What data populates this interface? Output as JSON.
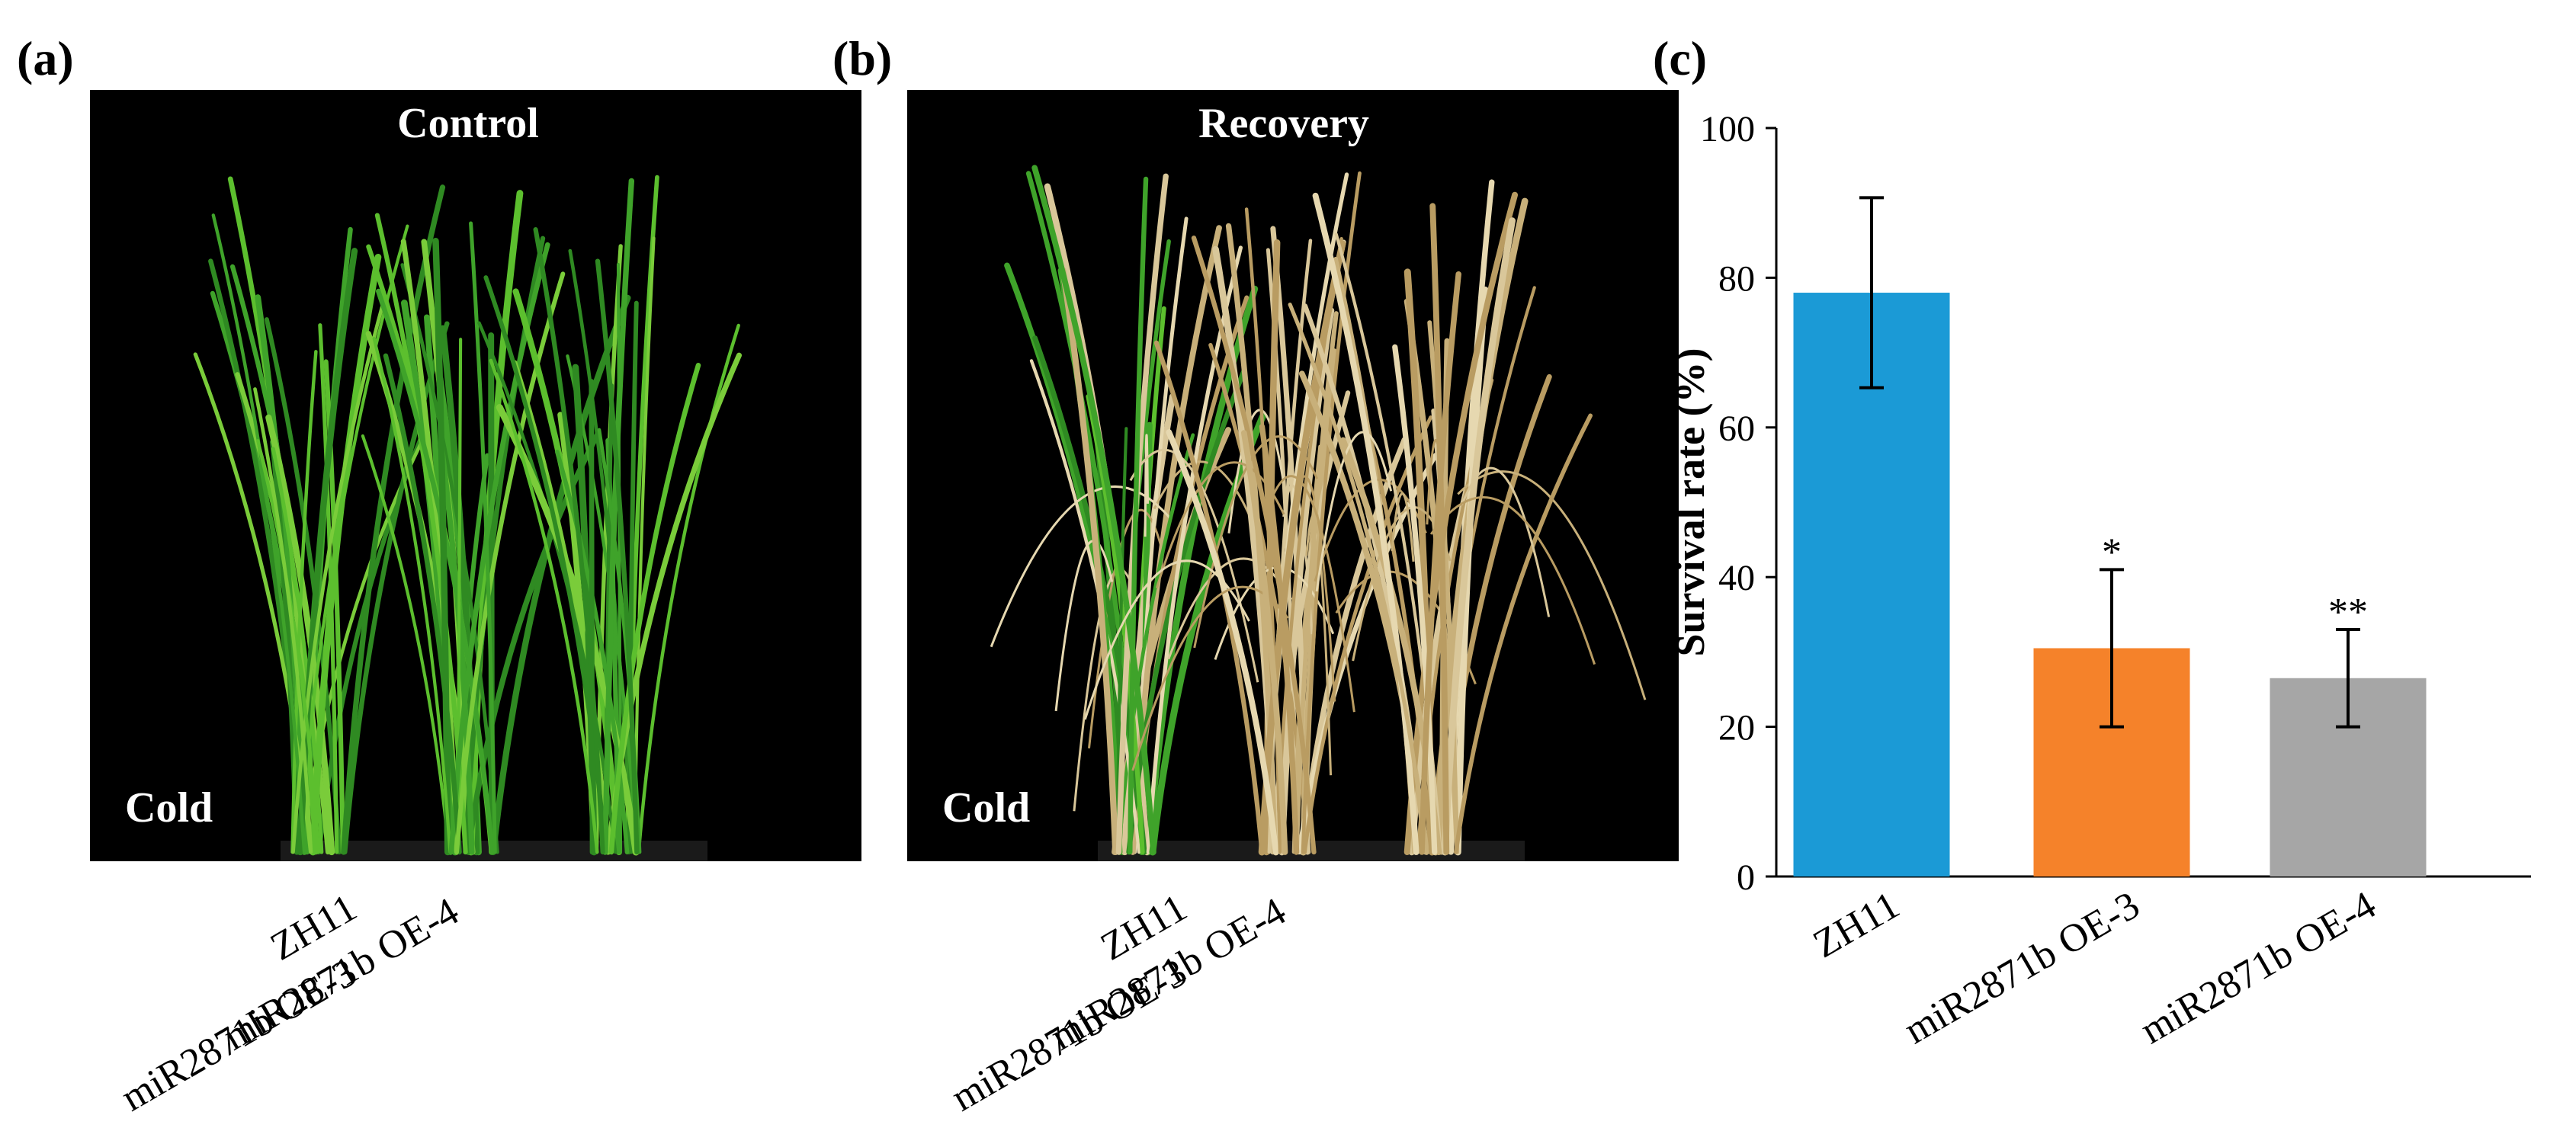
{
  "panels": {
    "a": {
      "letter": "(a)",
      "title": "Control",
      "corner_label": "Cold",
      "x_labels": [
        "ZH11",
        "miR2871b OE-3",
        "miR2871b OE-4"
      ]
    },
    "b": {
      "letter": "(b)",
      "title": "Recovery",
      "corner_label": "Cold",
      "x_labels": [
        "ZH11",
        "miR2871b OE-3",
        "miR2871b OE-4"
      ]
    },
    "c": {
      "letter": "(c)"
    }
  },
  "chart_data": {
    "type": "bar",
    "categories": [
      "ZH11",
      "miR2871b OE-3",
      "miR2871b OE-4"
    ],
    "values": [
      78,
      30.5,
      26.5
    ],
    "error": [
      12.7,
      10.5,
      6.5
    ],
    "significance": [
      "",
      "*",
      "**"
    ],
    "colors": [
      "#1b9ad6",
      "#f5822a",
      "#a6a6a6"
    ],
    "ylabel": "Survival rate  (%)",
    "ylim": [
      0,
      100
    ],
    "yticks": [
      0,
      20,
      40,
      60,
      80,
      100
    ],
    "grid": false,
    "legend": "none"
  }
}
